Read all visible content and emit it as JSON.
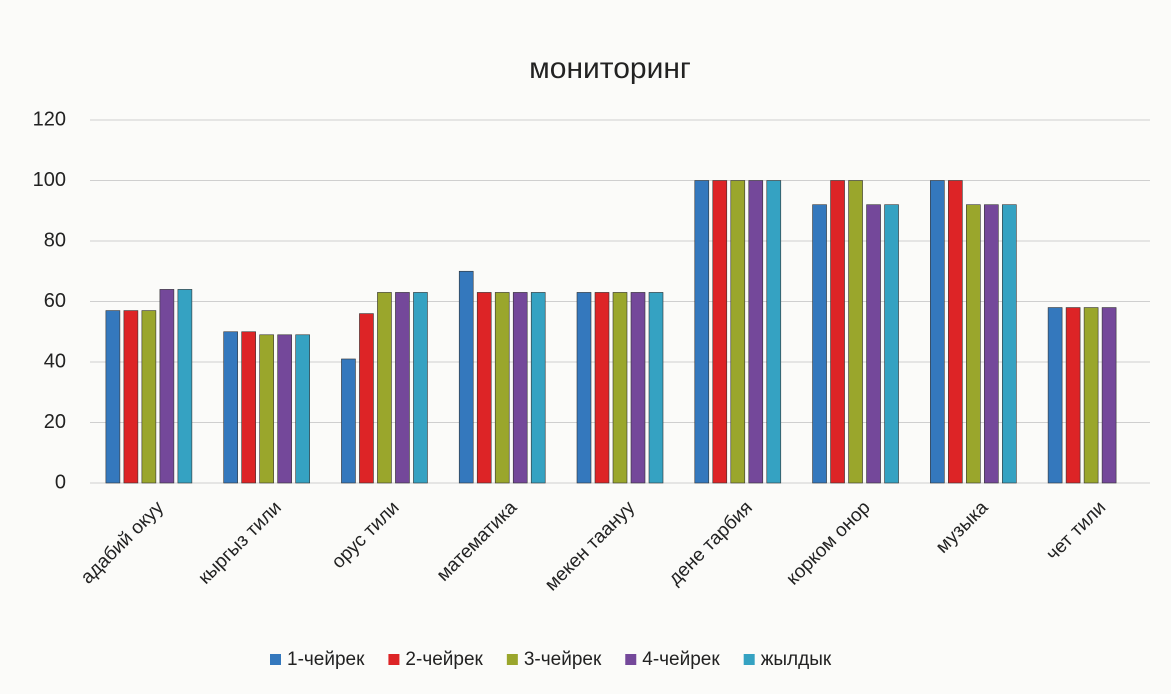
{
  "chart_data": {
    "type": "bar",
    "title": "мониторинг",
    "categories": [
      "адабий окуу",
      "кыргыз тили",
      "орус тили",
      "математика",
      "мекен таануу",
      "дене тарбия",
      "корком онор",
      "музыка",
      "чет тили"
    ],
    "series": [
      {
        "name": "1-чейрек",
        "color": "#3478bd",
        "values": [
          57,
          50,
          41,
          70,
          63,
          100,
          92,
          100,
          58
        ]
      },
      {
        "name": "2-чейрек",
        "color": "#dd2426",
        "values": [
          57,
          50,
          56,
          63,
          63,
          100,
          100,
          100,
          58
        ]
      },
      {
        "name": "3-чейрек",
        "color": "#9aa62c",
        "values": [
          57,
          49,
          63,
          63,
          63,
          100,
          100,
          92,
          58
        ]
      },
      {
        "name": "4-чейрек",
        "color": "#74489a",
        "values": [
          64,
          49,
          63,
          63,
          63,
          100,
          92,
          92,
          58
        ]
      },
      {
        "name": "жылдык",
        "color": "#35a2c2",
        "values": [
          64,
          49,
          63,
          63,
          63,
          100,
          92,
          92,
          null
        ]
      }
    ],
    "ylim": [
      0,
      120
    ],
    "yticks": [
      0,
      20,
      40,
      60,
      80,
      100,
      120
    ],
    "grid": true,
    "legend": "bottom"
  }
}
